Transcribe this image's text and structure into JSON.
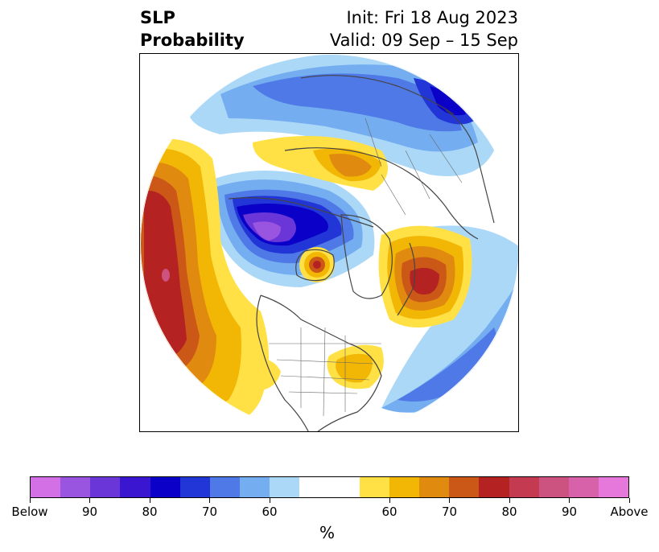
{
  "title": {
    "line1": "SLP",
    "line2": "Probability",
    "init": "Init: Fri 18 Aug 2023",
    "valid": "Valid: 09 Sep – 15 Sep"
  },
  "colorbar": {
    "label": "%",
    "colors": [
      "#d470e6",
      "#9a55e0",
      "#6a36d8",
      "#3a16d0",
      "#0a00c8",
      "#2236d8",
      "#4f79e6",
      "#74aef0",
      "#acd8f8",
      "#ffffff",
      "#ffffff",
      "#ffe045",
      "#f2b705",
      "#e08a10",
      "#cc5818",
      "#b42222",
      "#c43a50",
      "#cc5280",
      "#d862aa",
      "#e678dc"
    ],
    "tick_labels": [
      {
        "text": "Below",
        "idx": 0
      },
      {
        "text": "90",
        "idx": 2
      },
      {
        "text": "80",
        "idx": 4
      },
      {
        "text": "70",
        "idx": 6
      },
      {
        "text": "60",
        "idx": 8
      },
      {
        "text": "60",
        "idx": 12
      },
      {
        "text": "70",
        "idx": 14
      },
      {
        "text": "80",
        "idx": 16
      },
      {
        "text": "90",
        "idx": 18
      },
      {
        "text": "Above",
        "idx": 20
      }
    ]
  },
  "map": {
    "projection": "north-polar-stereographic",
    "background": "#ffffff",
    "coast_color": "#444444"
  }
}
